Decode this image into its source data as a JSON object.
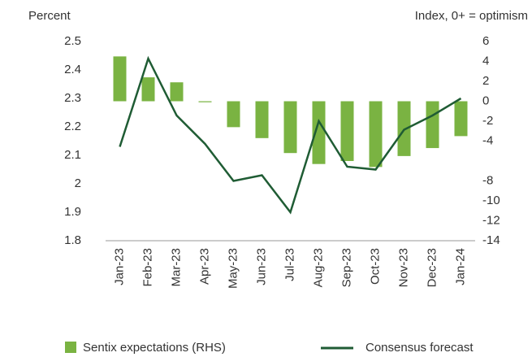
{
  "chart_data": {
    "type": "bar-line",
    "y_label": "Percent",
    "y2_label": "Index, 0+ = optimism",
    "categories": [
      "Jan-23",
      "Feb-23",
      "Mar-23",
      "Apr-23",
      "May-23",
      "Jun-23",
      "Jul-23",
      "Aug-23",
      "Sep-23",
      "Oct-23",
      "Nov-23",
      "Dec-23",
      "Jan-24"
    ],
    "series": [
      {
        "name": "Sentix expectations (RHS)",
        "type": "bar",
        "axis": "y2",
        "color": "#7ab342",
        "values": [
          4.5,
          2.4,
          1.9,
          -0.1,
          -2.6,
          -3.7,
          -5.2,
          -6.3,
          -6.0,
          -6.6,
          -5.5,
          -4.7,
          -3.5
        ]
      },
      {
        "name": "Consensus forecast",
        "type": "line",
        "axis": "y",
        "color": "#1f5c34",
        "values": [
          2.13,
          2.44,
          2.24,
          2.14,
          2.01,
          2.03,
          1.9,
          2.22,
          2.06,
          2.05,
          2.19,
          2.24,
          2.3
        ]
      }
    ],
    "ylim": [
      1.8,
      2.5
    ],
    "yticks": [
      1.8,
      1.9,
      2.0,
      2.1,
      2.2,
      2.3,
      2.4,
      2.5
    ],
    "y2lim": [
      -14,
      6
    ],
    "y2ticks": [
      -14,
      -12,
      -10,
      -8,
      -4,
      -2,
      0,
      2,
      4,
      6
    ]
  }
}
